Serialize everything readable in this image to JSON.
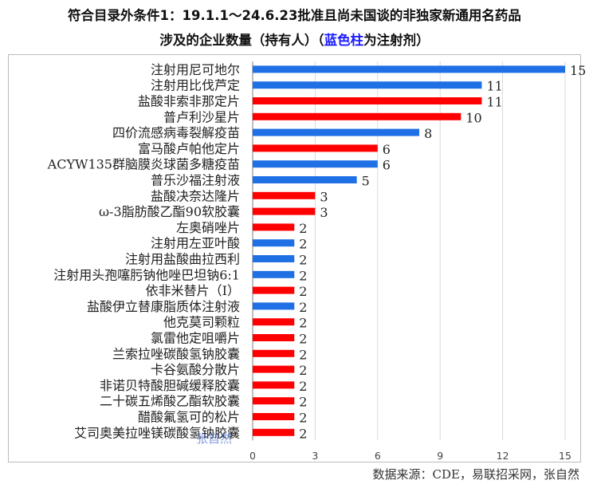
{
  "title": {
    "line1": "符合目录外条件1：19.1.1～24.6.23批准且尚未国谈的非独家新通用名药品",
    "line2_prefix": "涉及的企业数量（持有人）（",
    "line2_highlight": "蓝色柱",
    "line2_suffix": "为注射剂）"
  },
  "source_note": "数据来源：CDE，易联招采网，张自然",
  "watermark": "张自然",
  "colors": {
    "blue": "#1f6fe5",
    "red": "#ff0000",
    "grid": "#d9d9d9",
    "highlight_text": "#1a1aff"
  },
  "chart_data": {
    "type": "bar",
    "orientation": "horizontal",
    "xlim": [
      0,
      15
    ],
    "xticks": [
      0,
      3,
      6,
      9,
      12,
      15
    ],
    "grid": true,
    "categories": [
      "注射用尼可地尔",
      "注射用比伐芦定",
      "盐酸非索非那定片",
      "普卢利沙星片",
      "四价流感病毒裂解疫苗",
      "富马酸卢帕他定片",
      "ACYW135群脑膜炎球菌多糖疫苗",
      "普乐沙福注射液",
      "盐酸决奈达隆片",
      "ω-3脂肪酸乙酯90软胶囊",
      "左奥硝唑片",
      "注射用左亚叶酸",
      "注射用盐酸曲拉西利",
      "注射用头孢噻肟钠他唑巴坦钠6:1",
      "依非米替片（Ⅰ）",
      "盐酸伊立替康脂质体注射液",
      "他克莫司颗粒",
      "氯雷他定咀嚼片",
      "兰索拉唑碳酸氢钠胶囊",
      "卡谷氨酸分散片",
      "非诺贝特酸胆碱缓释胶囊",
      "二十碳五烯酸乙酯软胶囊",
      "醋酸氟氢可的松片",
      "艾司奥美拉唑镁碳酸氢钠胶囊"
    ],
    "values": [
      15,
      11,
      11,
      10,
      8,
      6,
      6,
      5,
      3,
      3,
      2,
      2,
      2,
      2,
      2,
      2,
      2,
      2,
      2,
      2,
      2,
      2,
      2,
      2
    ],
    "colors": [
      "blue",
      "blue",
      "red",
      "red",
      "blue",
      "red",
      "blue",
      "blue",
      "red",
      "red",
      "red",
      "blue",
      "blue",
      "blue",
      "red",
      "blue",
      "red",
      "red",
      "red",
      "red",
      "red",
      "red",
      "red",
      "red"
    ]
  }
}
